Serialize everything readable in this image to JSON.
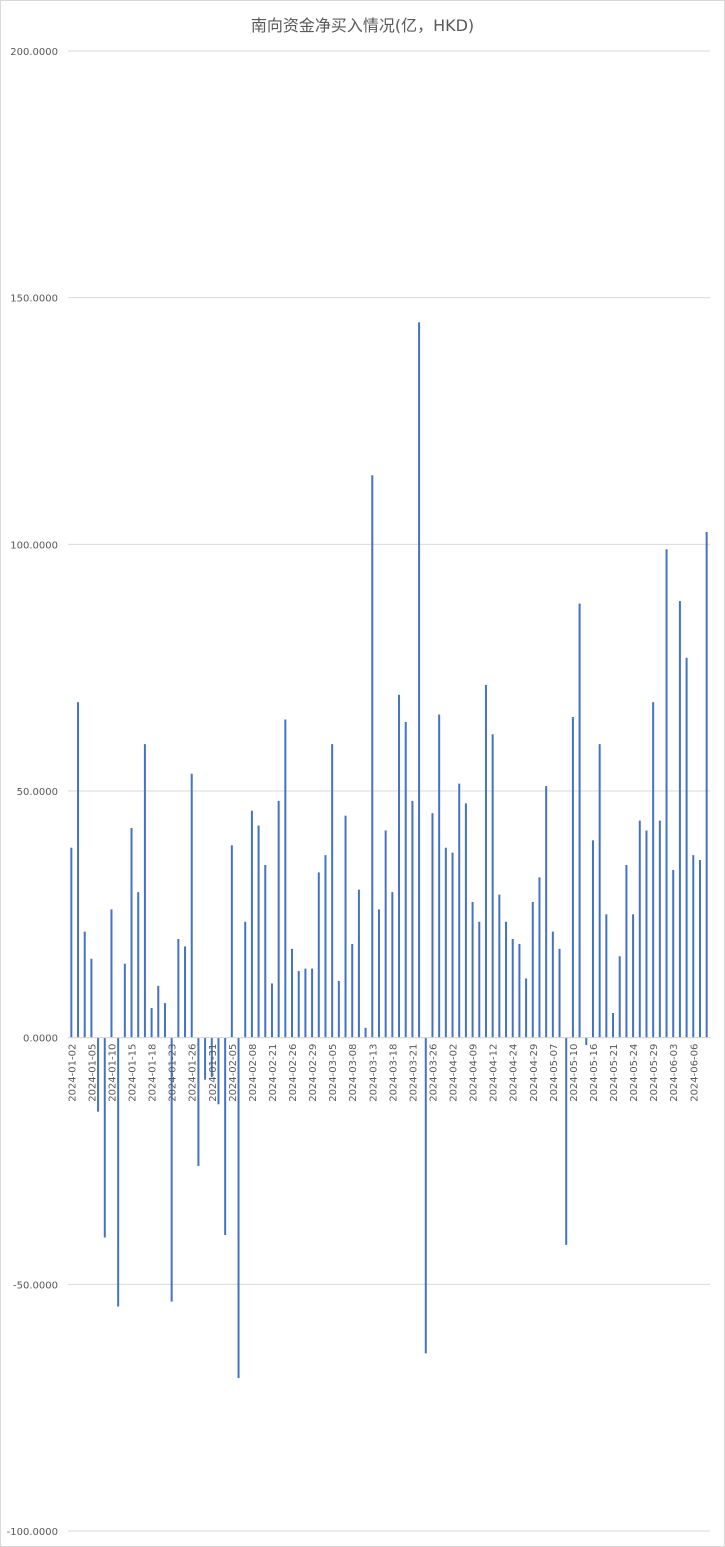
{
  "chart_data": {
    "type": "bar",
    "title": "南向资金净买入情况(亿，HKD)",
    "xlabel": "",
    "ylabel": "",
    "ylim": [
      -100,
      200
    ],
    "yticks": [
      "200.0000",
      "150.0000",
      "100.0000",
      "50.0000",
      "0.0000",
      "-50.0000",
      "-100.0000"
    ],
    "ytick_values": [
      200,
      150,
      100,
      50,
      0,
      -50,
      -100
    ],
    "grid": true,
    "legend": "none",
    "bar_color": "#4472c4",
    "xtick_labels": [
      "2024-01-02",
      "2024-01-05",
      "2024-01-10",
      "2024-01-15",
      "2024-01-18",
      "2024-01-23",
      "2024-01-26",
      "2024-01-31",
      "2024-02-05",
      "2024-02-08",
      "2024-02-21",
      "2024-02-26",
      "2024-02-29",
      "2024-03-05",
      "2024-03-08",
      "2024-03-13",
      "2024-03-18",
      "2024-03-21",
      "2024-03-26",
      "2024-04-02",
      "2024-04-09",
      "2024-04-12",
      "2024-04-24",
      "2024-04-29",
      "2024-05-07",
      "2024-05-10",
      "2024-05-16",
      "2024-05-21",
      "2024-05-24",
      "2024-05-29",
      "2024-06-03",
      "2024-06-06"
    ],
    "values": [
      38.5,
      68,
      21.5,
      16,
      -15,
      -40.5,
      26,
      -54.5,
      15,
      42.5,
      29.5,
      59.5,
      6,
      10.5,
      7,
      -53.5,
      20,
      18.5,
      53.5,
      -26,
      -8.5,
      -8,
      -13.5,
      -40,
      39,
      -69,
      23.5,
      46,
      43,
      35,
      11,
      48,
      64.5,
      18,
      13.5,
      14,
      14,
      33.5,
      37,
      59.5,
      11.5,
      45,
      19,
      30,
      2,
      114,
      26,
      42,
      29.5,
      69.5,
      64,
      48,
      145,
      -64,
      45.5,
      65.5,
      38.5,
      37.5,
      51.5,
      47.5,
      27.5,
      23.5,
      71.5,
      61.5,
      29,
      23.5,
      20,
      19,
      12,
      27.5,
      32.5,
      51,
      21.5,
      18,
      -42,
      65,
      88,
      -1.5,
      40,
      59.5,
      25,
      5,
      16.5,
      35,
      25,
      44,
      42,
      68,
      44,
      99,
      34,
      88.5,
      77,
      37,
      36,
      102.5
    ]
  }
}
